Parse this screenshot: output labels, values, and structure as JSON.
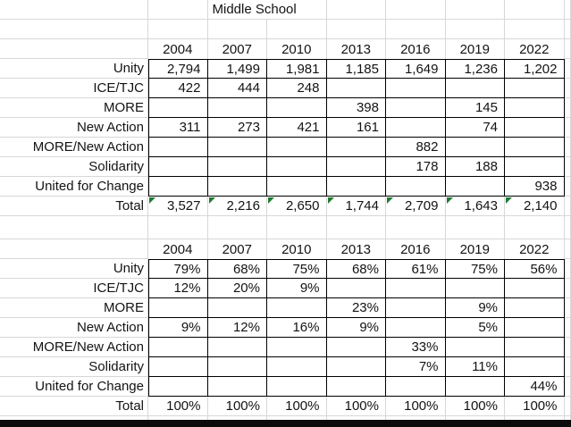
{
  "title": "Middle School",
  "colors": {
    "gridline": "#d7d7d7",
    "cell_border": "#000000",
    "error_indicator_green": "#1e7d34",
    "bottom_bar": "#0b0b0b",
    "text": "#131313",
    "background": "#ffffff"
  },
  "icons": {
    "error_indicator": "error-indicator-icon"
  },
  "tables": [
    {
      "name": "counts",
      "header": [
        "2004",
        "2007",
        "2010",
        "2013",
        "2016",
        "2019",
        "2022"
      ],
      "rows": [
        {
          "label": "Unity",
          "values": [
            "2,794",
            "1,499",
            "1,981",
            "1,185",
            "1,649",
            "1,236",
            "1,202"
          ]
        },
        {
          "label": "ICE/TJC",
          "values": [
            "422",
            "444",
            "248",
            "",
            "",
            "",
            ""
          ]
        },
        {
          "label": "MORE",
          "values": [
            "",
            "",
            "",
            "398",
            "",
            "145",
            ""
          ]
        },
        {
          "label": "New Action",
          "values": [
            "311",
            "273",
            "421",
            "161",
            "",
            "74",
            ""
          ]
        },
        {
          "label": "MORE/New Action",
          "values": [
            "",
            "",
            "",
            "",
            "882",
            "",
            ""
          ]
        },
        {
          "label": "Solidarity",
          "values": [
            "",
            "",
            "",
            "",
            "178",
            "188",
            ""
          ]
        },
        {
          "label": "United for Change",
          "values": [
            "",
            "",
            "",
            "",
            "",
            "",
            "938"
          ]
        }
      ],
      "total": {
        "label": "Total",
        "values": [
          "3,527",
          "2,216",
          "2,650",
          "1,744",
          "2,709",
          "1,643",
          "2,140"
        ],
        "error_indicators": true
      }
    },
    {
      "name": "percentages",
      "header": [
        "2004",
        "2007",
        "2010",
        "2013",
        "2016",
        "2019",
        "2022"
      ],
      "rows": [
        {
          "label": "Unity",
          "values": [
            "79%",
            "68%",
            "75%",
            "68%",
            "61%",
            "75%",
            "56%"
          ]
        },
        {
          "label": "ICE/TJC",
          "values": [
            "12%",
            "20%",
            "9%",
            "",
            "",
            "",
            ""
          ]
        },
        {
          "label": "MORE",
          "values": [
            "",
            "",
            "",
            "23%",
            "",
            "9%",
            ""
          ]
        },
        {
          "label": "New Action",
          "values": [
            "9%",
            "12%",
            "16%",
            "9%",
            "",
            "5%",
            ""
          ]
        },
        {
          "label": "MORE/New Action",
          "values": [
            "",
            "",
            "",
            "",
            "33%",
            "",
            ""
          ]
        },
        {
          "label": "Solidarity",
          "values": [
            "",
            "",
            "",
            "",
            "7%",
            "11%",
            ""
          ]
        },
        {
          "label": "United for Change",
          "values": [
            "",
            "",
            "",
            "",
            "",
            "",
            "44%"
          ]
        }
      ],
      "total": {
        "label": "Total",
        "values": [
          "100%",
          "100%",
          "100%",
          "100%",
          "100%",
          "100%",
          "100%"
        ],
        "error_indicators": false
      }
    }
  ]
}
